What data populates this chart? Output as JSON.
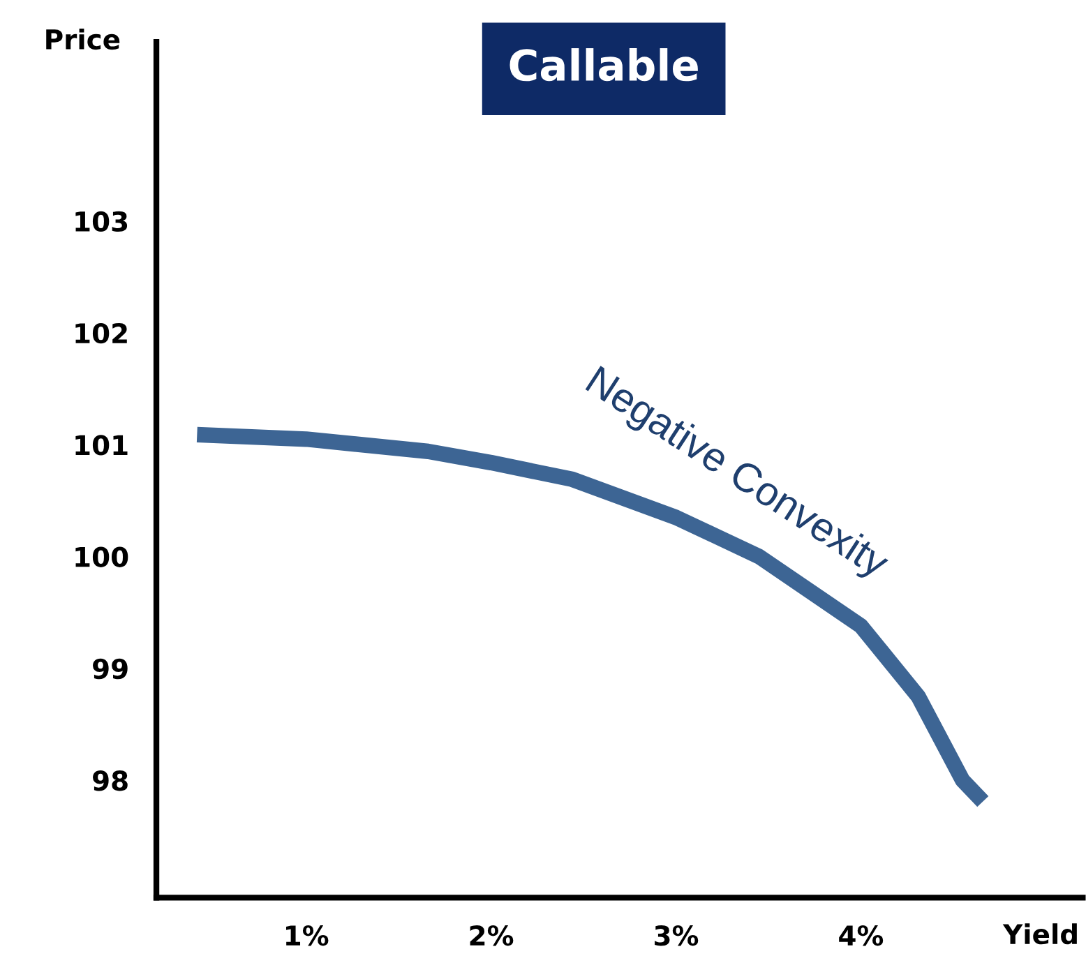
{
  "chart_data": {
    "type": "line",
    "title": "Callable",
    "xlabel": "Yield",
    "ylabel": "Price",
    "x": [
      0.41,
      1.0,
      1.66,
      2.0,
      2.44,
      3.0,
      3.45,
      4.0,
      4.31,
      4.55,
      4.66
    ],
    "series": [
      {
        "color": "#3d6594",
        "values": [
          101.09,
          101.05,
          100.94,
          100.84,
          100.69,
          100.35,
          100.0,
          99.38,
          98.75,
          98.0,
          97.81
        ]
      }
    ],
    "annotations": [
      "Negative Convexity"
    ],
    "xlim": [
      0.19,
      5.2
    ],
    "ylim": [
      96.95,
      104.6
    ],
    "xticks": [
      {
        "value": 1,
        "label": "1%"
      },
      {
        "value": 2,
        "label": "2%"
      },
      {
        "value": 3,
        "label": "3%"
      },
      {
        "value": 4,
        "label": "4%"
      }
    ],
    "yticks": [
      98,
      99,
      100,
      101,
      102,
      103
    ],
    "grid": false,
    "legend": false,
    "marker": "none",
    "line_style": "solid"
  }
}
